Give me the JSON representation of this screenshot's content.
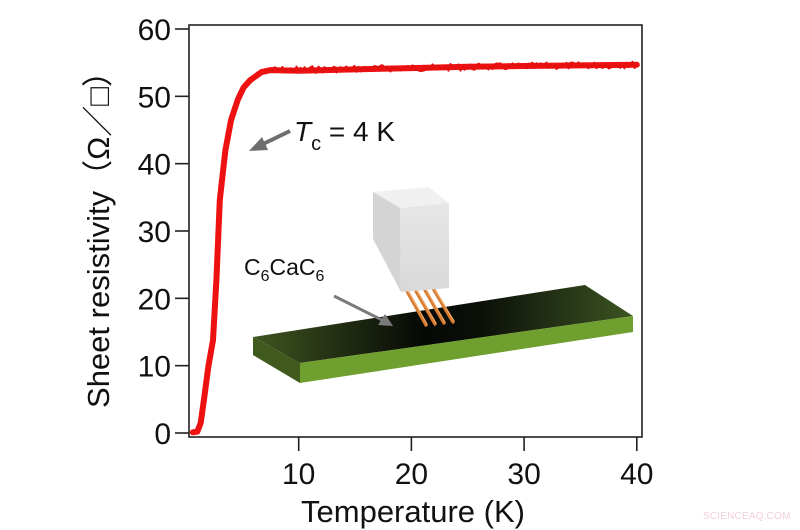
{
  "chart_data": {
    "type": "line",
    "title": "",
    "xlabel": "Temperature (K)",
    "ylabel": "Sheet resistivity（Ω／□）",
    "xlim": [
      0,
      40.5
    ],
    "ylim": [
      0,
      60
    ],
    "xticks": [
      10,
      20,
      30,
      40
    ],
    "yticks": [
      0,
      10,
      20,
      30,
      40,
      50,
      60
    ],
    "grid": false,
    "legend": null,
    "series": [
      {
        "name": "C6CaC6 sheet resistivity",
        "color": "#ee1111",
        "x": [
          0.6,
          1.0,
          1.3,
          1.6,
          2.0,
          2.4,
          2.7,
          3.0,
          3.3,
          3.5,
          4.0,
          4.6,
          5.1,
          5.7,
          6.7,
          7.5,
          10,
          15,
          20,
          25,
          30,
          35,
          40
        ],
        "y": [
          0.1,
          0.2,
          1.5,
          5.0,
          10.0,
          13.8,
          22.7,
          34.6,
          39.1,
          42.0,
          46.5,
          49.5,
          51.3,
          52.4,
          53.6,
          53.9,
          53.8,
          54.0,
          54.2,
          54.4,
          54.5,
          54.6,
          54.7
        ]
      }
    ],
    "annotations": [
      {
        "text_main": "T",
        "text_sub": "c",
        "text_rest": " = 4 K",
        "arrow_target": [
          3.5,
          42
        ],
        "type": "arrow-label"
      },
      {
        "text_parts": [
          "C",
          "6",
          "CaC",
          "6"
        ],
        "label": "C6CaC6",
        "type": "inset-label"
      }
    ],
    "inset": {
      "description": "4-point probe block contacting a green C6CaC6 slab",
      "slab_top_color": "#2e3d1a",
      "slab_side_color": "#6a9a2c",
      "probe_color": "#dcdcdc",
      "pin_color": "#e0873a"
    }
  },
  "watermark": "SCIENCEAQ.COM"
}
